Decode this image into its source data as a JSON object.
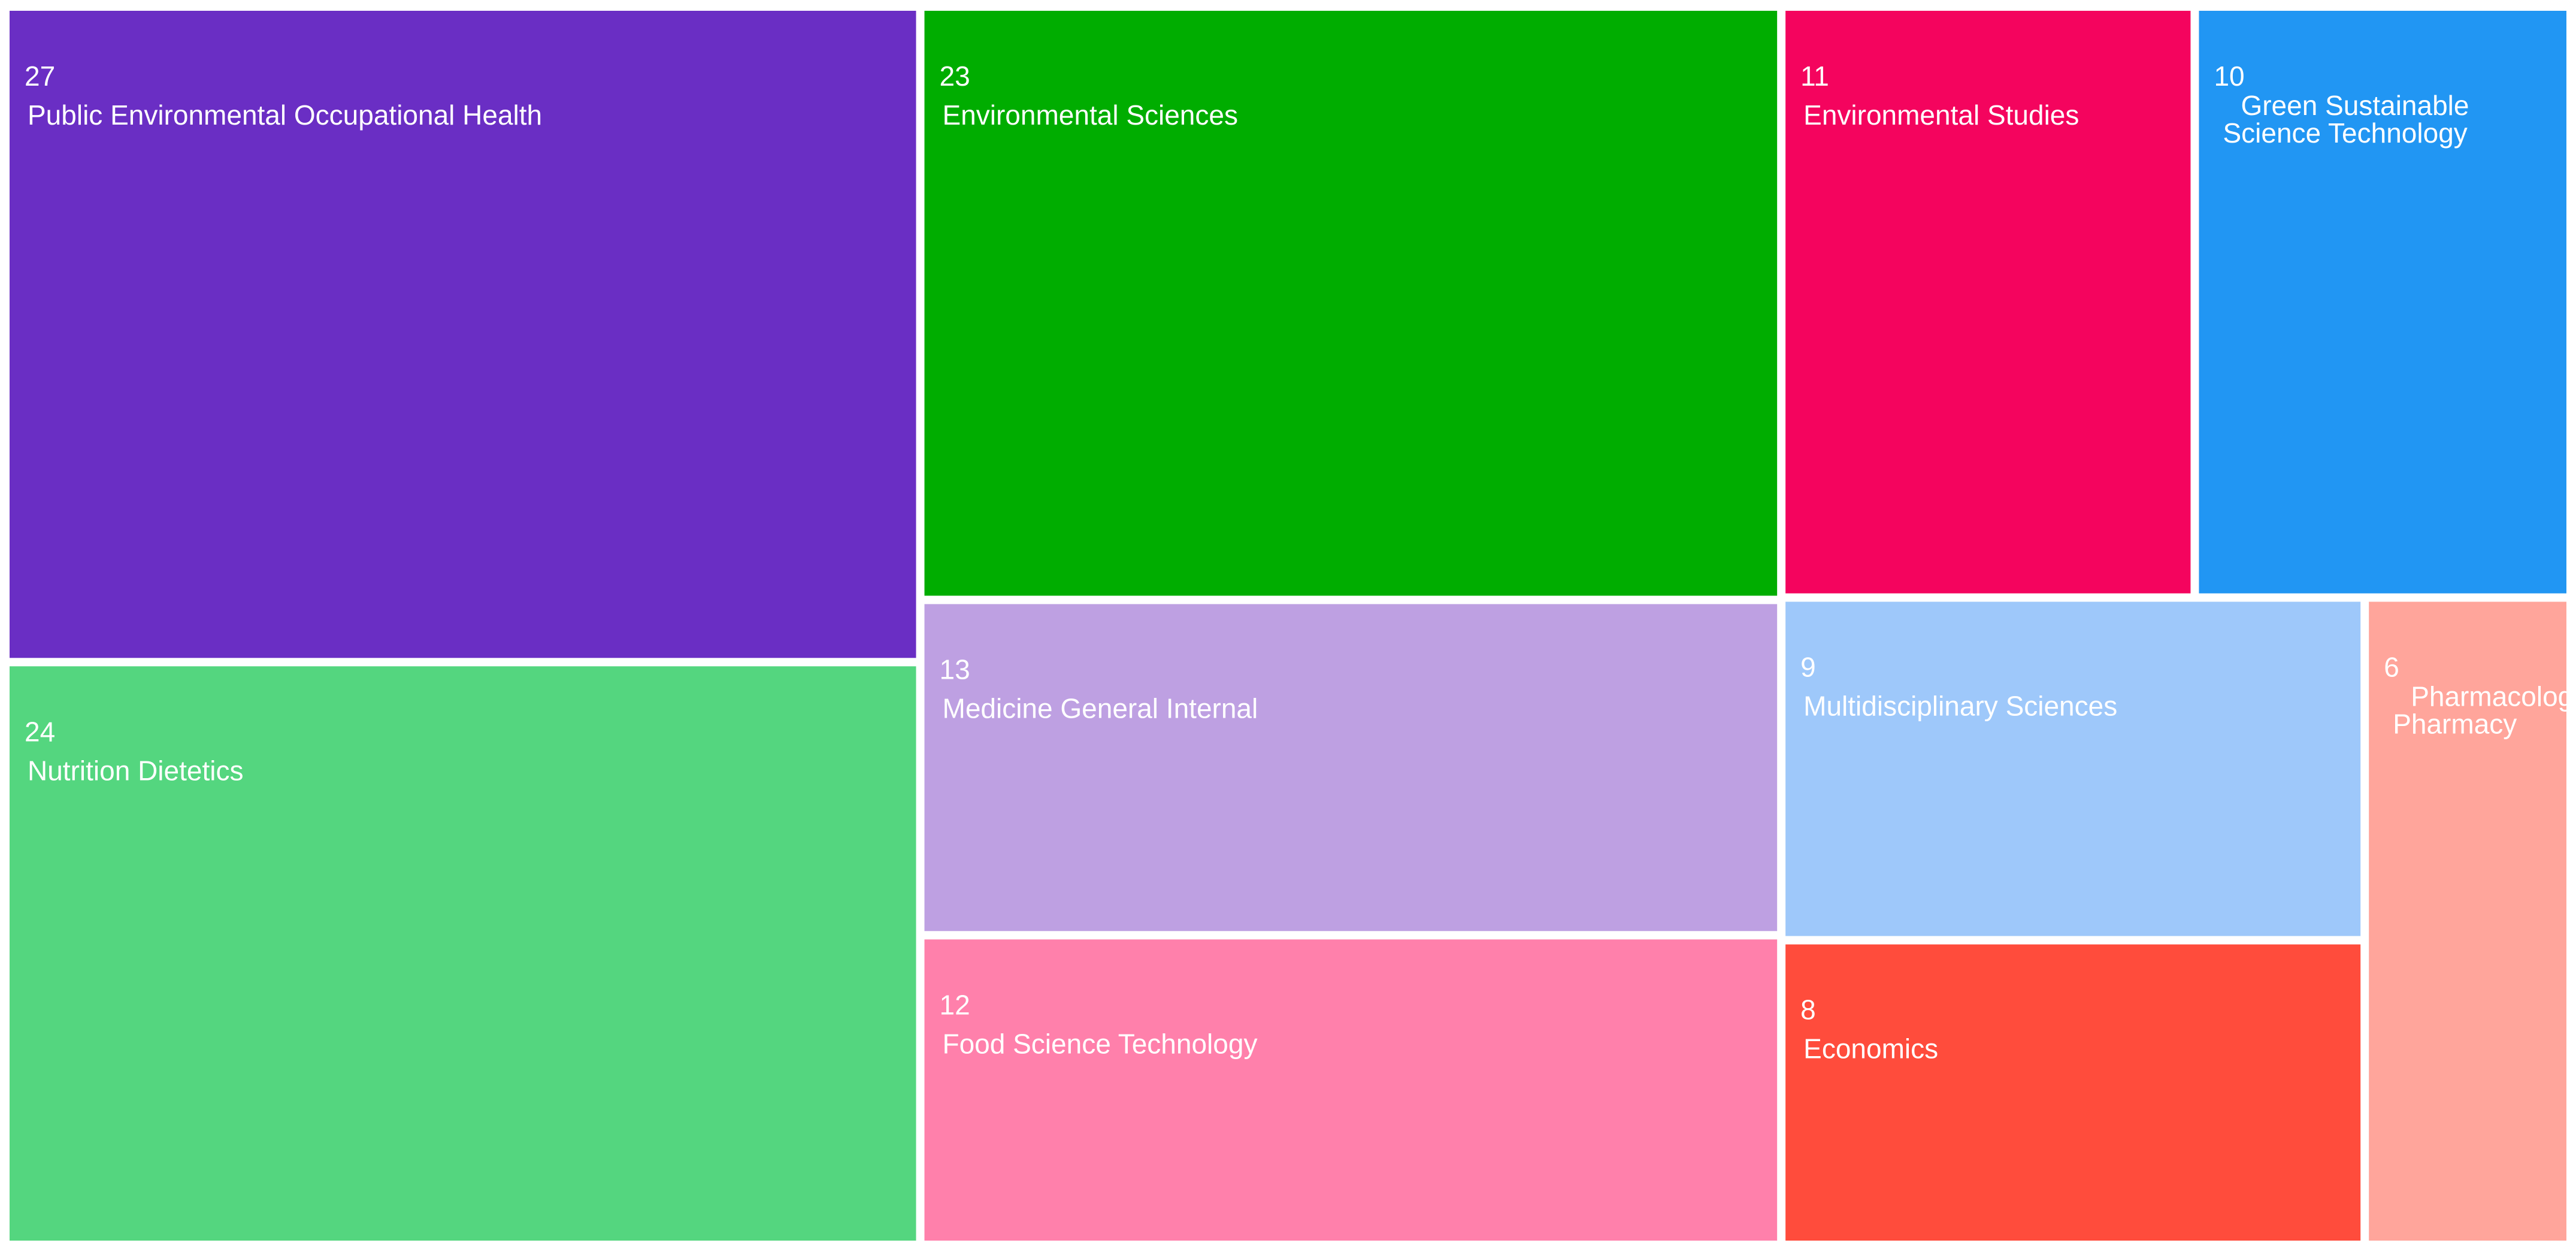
{
  "chart_data": {
    "type": "treemap",
    "categories": [
      "Public Environmental Occupational Health",
      "Nutrition Dietetics",
      "Environmental Sciences",
      "Medicine General Internal",
      "Food Science Technology",
      "Environmental Studies",
      "Green Sustainable Science Technology",
      "Multidisciplinary Sciences",
      "Economics",
      "Pharmacology Pharmacy"
    ],
    "values": [
      27,
      24,
      23,
      13,
      12,
      11,
      10,
      9,
      8,
      6
    ],
    "colors": [
      "#6a2ec4",
      "#54d67f",
      "#00ad00",
      "#bea0e2",
      "#ff80ab",
      "#f4045e",
      "#2196f3",
      "#9ec8fa",
      "#ff4c3c",
      "#ffa59b"
    ]
  }
}
